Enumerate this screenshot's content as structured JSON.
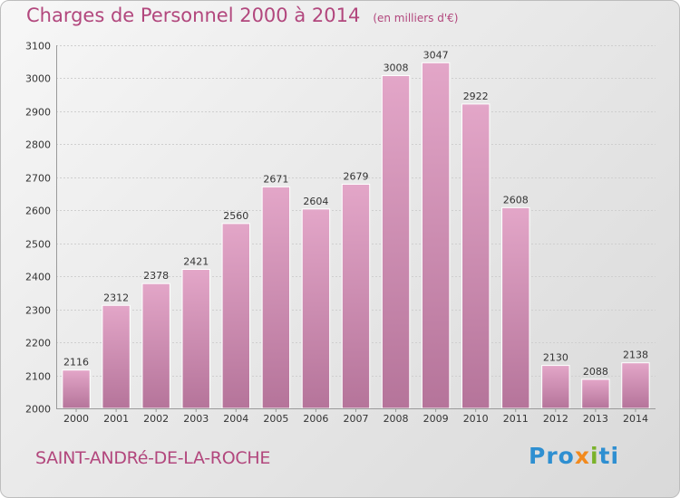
{
  "header": {
    "title": "Charges de Personnel 2000 à 2014",
    "subtitle": "(en milliers d'€)"
  },
  "footer": {
    "commune": "SAINT-ANDRé-DE-LA-ROCHE",
    "logo_parts": [
      "Pro",
      "x",
      "i",
      "ti"
    ]
  },
  "colors": {
    "bar_light": "#e3a6c8",
    "bar_dark": "#b5749a",
    "title": "#b2477d"
  },
  "chart_data": {
    "type": "bar",
    "title": "Charges de Personnel 2000 à 2014",
    "subtitle": "(en milliers d'€)",
    "xlabel": "",
    "ylabel": "",
    "categories": [
      "2000",
      "2001",
      "2002",
      "2003",
      "2004",
      "2005",
      "2006",
      "2007",
      "2008",
      "2009",
      "2010",
      "2011",
      "2012",
      "2013",
      "2014"
    ],
    "values": [
      2116,
      2312,
      2378,
      2421,
      2560,
      2671,
      2604,
      2679,
      3008,
      3047,
      2922,
      2608,
      2130,
      2088,
      2138
    ],
    "ylim": [
      2000,
      3100
    ],
    "yticks": [
      2000,
      2100,
      2200,
      2300,
      2400,
      2500,
      2600,
      2700,
      2800,
      2900,
      3000,
      3100
    ],
    "grid": true,
    "data_labels": true
  }
}
